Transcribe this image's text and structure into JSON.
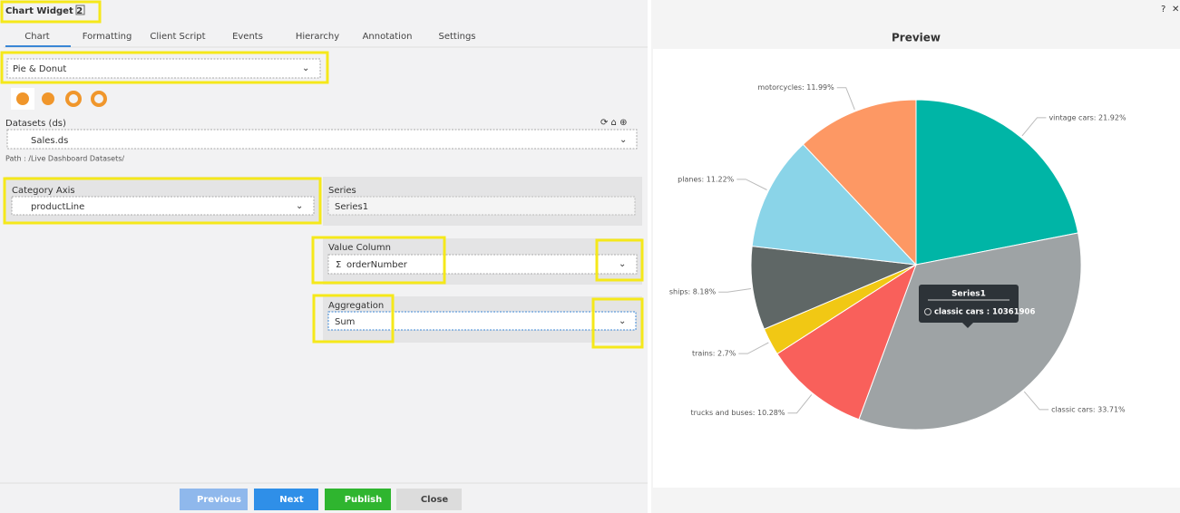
{
  "header": {
    "title": "Chart Widget 2"
  },
  "tabs": [
    "Chart",
    "Formatting",
    "Client Script",
    "Events",
    "Hierarchy",
    "Annotation",
    "Settings"
  ],
  "form": {
    "chart_type": "Pie & Donut",
    "datasets_label": "Datasets (ds)",
    "dataset": "Sales.ds",
    "path": "Path : /Live Dashboard Datasets/",
    "category_axis": {
      "label": "Category Axis",
      "value": "productLine"
    },
    "series": {
      "label": "Series",
      "value": "Series1"
    },
    "value_column": {
      "label": "Value Column",
      "value": "orderNumber"
    },
    "aggregation": {
      "label": "Aggregation",
      "value": "Sum"
    }
  },
  "buttons": [
    "Previous",
    "Next",
    "Publish",
    "Close"
  ],
  "preview": {
    "title": "Preview"
  },
  "chart_data": {
    "type": "pie",
    "values": [
      21.92,
      33.71,
      10.28,
      2.7,
      8.18,
      11.22,
      11.99
    ],
    "value_labels": [
      "vintage cars: 21.92%",
      "classic cars: 33.71%",
      "trucks and buses: 10.28%",
      "trains: 2.7%",
      "ships: 8.18%",
      "planes: 11.22%",
      "motorcycles: 11.99%"
    ],
    "colors": [
      "#00b5a6",
      "#9ea3a5",
      "#f9605b",
      "#f1c814",
      "#5f6766",
      "#8ad4e8",
      "#fd9864"
    ],
    "tooltip": {
      "title": "Series1",
      "text": "classic cars : 10361906"
    }
  }
}
